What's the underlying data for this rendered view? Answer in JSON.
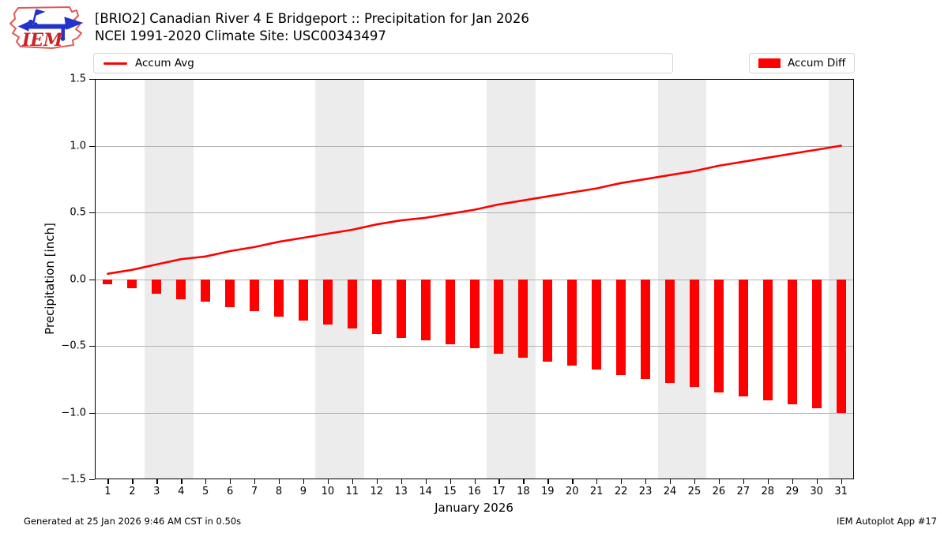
{
  "logo": {
    "text": "IEM"
  },
  "header": {
    "title_line1": "[BRIO2] Canadian River 4 E Bridgeport :: Precipitation for Jan 2026",
    "title_line2": "NCEI 1991-2020 Climate Site: USC00343497"
  },
  "legend": {
    "avg_label": "Accum Avg",
    "diff_label": "Accum Diff"
  },
  "chart_data": {
    "type": "bar",
    "subtype": "line+bar combo",
    "title": "[BRIO2] Canadian River 4 E Bridgeport :: Precipitation for Jan 2026",
    "subtitle": "NCEI 1991-2020 Climate Site: USC00343497",
    "xlabel": "January 2026",
    "ylabel": "Precipitation [inch]",
    "xlim": [
      0.47,
      31.53
    ],
    "ylim": [
      -1.5,
      1.5
    ],
    "grid": "horizontal gridlines on, weekend day bands shaded",
    "legend_position": "top row: line legend left box, bar legend right box",
    "days": [
      1,
      2,
      3,
      4,
      5,
      6,
      7,
      8,
      9,
      10,
      11,
      12,
      13,
      14,
      15,
      16,
      17,
      18,
      19,
      20,
      21,
      22,
      23,
      24,
      25,
      26,
      27,
      28,
      29,
      30,
      31
    ],
    "yticks": [
      {
        "v": 1.5,
        "label": "1.5"
      },
      {
        "v": 1.0,
        "label": "1.0"
      },
      {
        "v": 0.5,
        "label": "0.5"
      },
      {
        "v": 0.0,
        "label": "0.0"
      },
      {
        "v": -0.5,
        "label": "−0.5"
      },
      {
        "v": -1.0,
        "label": "−1.0"
      },
      {
        "v": -1.5,
        "label": "−1.5"
      }
    ],
    "gridlines": [
      1.0,
      0.5,
      0.0,
      -0.5,
      -1.0
    ],
    "weekend_bands": [
      [
        2.5,
        4.5
      ],
      [
        9.5,
        11.5
      ],
      [
        16.5,
        18.5
      ],
      [
        23.5,
        25.5
      ],
      [
        30.5,
        31.6
      ]
    ],
    "series": [
      {
        "name": "Accum Avg",
        "type": "line",
        "color": "#ff0000",
        "values": [
          0.04,
          0.07,
          0.11,
          0.15,
          0.17,
          0.21,
          0.24,
          0.28,
          0.31,
          0.34,
          0.37,
          0.41,
          0.44,
          0.46,
          0.49,
          0.52,
          0.56,
          0.59,
          0.62,
          0.65,
          0.68,
          0.72,
          0.75,
          0.78,
          0.81,
          0.85,
          0.88,
          0.91,
          0.94,
          0.97,
          1.0
        ]
      },
      {
        "name": "Accum Diff",
        "type": "bar",
        "color": "#ff0000",
        "values": [
          -0.04,
          -0.07,
          -0.11,
          -0.15,
          -0.17,
          -0.21,
          -0.24,
          -0.28,
          -0.31,
          -0.34,
          -0.37,
          -0.41,
          -0.44,
          -0.46,
          -0.49,
          -0.52,
          -0.56,
          -0.59,
          -0.62,
          -0.65,
          -0.68,
          -0.72,
          -0.75,
          -0.78,
          -0.81,
          -0.85,
          -0.88,
          -0.91,
          -0.94,
          -0.97,
          -1.0
        ]
      }
    ]
  },
  "footer": {
    "left": "Generated at 25 Jan 2026 9:46 AM CST in 0.50s",
    "right": "IEM Autoplot App #17"
  },
  "colors": {
    "accent": "#ff0000",
    "gridline": "#b2b2b2",
    "band": "#ececec",
    "logo_outline": "#e05a55",
    "logo_text": "#cc2222",
    "logo_instrument": "#2233cc"
  }
}
